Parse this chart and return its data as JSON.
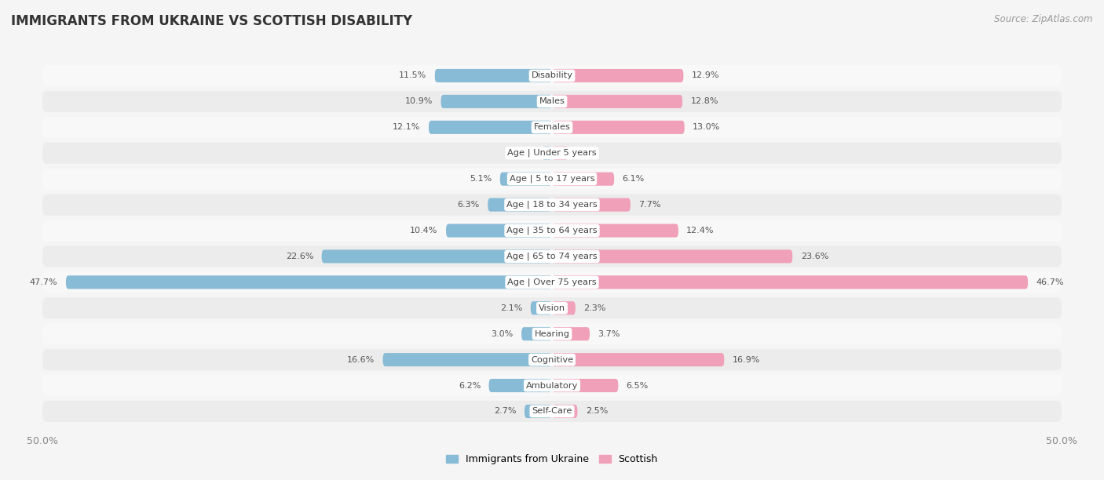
{
  "title": "IMMIGRANTS FROM UKRAINE VS SCOTTISH DISABILITY",
  "source": "Source: ZipAtlas.com",
  "categories": [
    "Disability",
    "Males",
    "Females",
    "Age | Under 5 years",
    "Age | 5 to 17 years",
    "Age | 18 to 34 years",
    "Age | 35 to 64 years",
    "Age | 65 to 74 years",
    "Age | Over 75 years",
    "Vision",
    "Hearing",
    "Cognitive",
    "Ambulatory",
    "Self-Care"
  ],
  "left_values": [
    11.5,
    10.9,
    12.1,
    1.0,
    5.1,
    6.3,
    10.4,
    22.6,
    47.7,
    2.1,
    3.0,
    16.6,
    6.2,
    2.7
  ],
  "right_values": [
    12.9,
    12.8,
    13.0,
    1.6,
    6.1,
    7.7,
    12.4,
    23.6,
    46.7,
    2.3,
    3.7,
    16.9,
    6.5,
    2.5
  ],
  "left_color": "#88BBD6",
  "right_color": "#F0A0B8",
  "max_val": 50.0,
  "left_label": "Immigrants from Ukraine",
  "right_label": "Scottish",
  "row_colors": [
    "#f0f0f0",
    "#e8e8e8"
  ],
  "background_color": "#f5f5f5"
}
